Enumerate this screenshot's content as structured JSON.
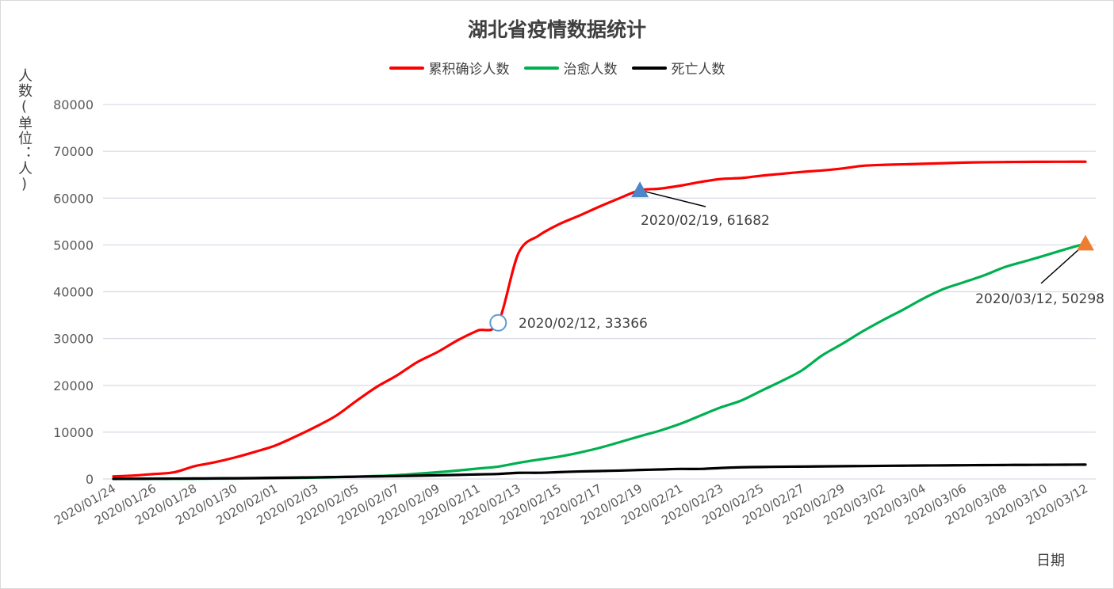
{
  "chart_data": {
    "type": "line",
    "title": "湖北省疫情数据统计",
    "xlabel": "日期",
    "ylabel": "人数(单位：人)",
    "ylim": [
      0,
      80000
    ],
    "yticks": [
      "0",
      "10000",
      "20000",
      "30000",
      "40000",
      "50000",
      "60000",
      "70000",
      "80000"
    ],
    "grid": true,
    "legend_position": "top",
    "categories": [
      "2020/01/24",
      "2020/01/25",
      "2020/01/26",
      "2020/01/27",
      "2020/01/28",
      "2020/01/29",
      "2020/01/30",
      "2020/01/31",
      "2020/02/01",
      "2020/02/02",
      "2020/02/03",
      "2020/02/04",
      "2020/02/05",
      "2020/02/06",
      "2020/02/07",
      "2020/02/08",
      "2020/02/09",
      "2020/02/10",
      "2020/02/11",
      "2020/02/12",
      "2020/02/13",
      "2020/02/14",
      "2020/02/15",
      "2020/02/16",
      "2020/02/17",
      "2020/02/18",
      "2020/02/19",
      "2020/02/20",
      "2020/02/21",
      "2020/02/22",
      "2020/02/23",
      "2020/02/24",
      "2020/02/25",
      "2020/02/26",
      "2020/02/27",
      "2020/02/28",
      "2020/02/29",
      "2020/03/01",
      "2020/03/02",
      "2020/03/03",
      "2020/03/04",
      "2020/03/05",
      "2020/03/06",
      "2020/03/07",
      "2020/03/08",
      "2020/03/09",
      "2020/03/10",
      "2020/03/11",
      "2020/03/12"
    ],
    "tick_labels": [
      "2020/01/24",
      "2020/01/26",
      "2020/01/28",
      "2020/01/30",
      "2020/02/01",
      "2020/02/03",
      "2020/02/05",
      "2020/02/07",
      "2020/02/09",
      "2020/02/11",
      "2020/02/13",
      "2020/02/15",
      "2020/02/17",
      "2020/02/19",
      "2020/02/21",
      "2020/02/23",
      "2020/02/25",
      "2020/02/27",
      "2020/02/29",
      "2020/03/02",
      "2020/03/04",
      "2020/03/06",
      "2020/03/08",
      "2020/03/10",
      "2020/03/12"
    ],
    "series": [
      {
        "name": "累积确诊人数",
        "color": "#ff0000",
        "values": [
          549,
          729,
          1052,
          1423,
          2714,
          3554,
          4586,
          5806,
          7153,
          9074,
          11177,
          13522,
          16678,
          19665,
          22112,
          24953,
          27100,
          29631,
          31728,
          33366,
          48206,
          51986,
          54406,
          56249,
          58182,
          59989,
          61682,
          62031,
          62662,
          63454,
          64084,
          64287,
          64786,
          65187,
          65596,
          65914,
          66337,
          66907,
          67103,
          67217,
          67332,
          67466,
          67592,
          67666,
          67707,
          67743,
          67760,
          67773,
          67781
        ]
      },
      {
        "name": "治愈人数",
        "color": "#00b050",
        "values": [
          31,
          32,
          42,
          44,
          47,
          80,
          90,
          116,
          166,
          215,
          295,
          396,
          520,
          633,
          817,
          1115,
          1439,
          1795,
          2222,
          2639,
          3441,
          4131,
          4774,
          5623,
          6639,
          7862,
          9128,
          10337,
          11788,
          13557,
          15299,
          16738,
          18854,
          20912,
          23200,
          26403,
          28895,
          31536,
          33934,
          36167,
          38556,
          40592,
          42033,
          43500,
          45235,
          46488,
          47743,
          49056,
          50298
        ]
      },
      {
        "name": "死亡人数",
        "color": "#000000",
        "values": [
          24,
          39,
          52,
          76,
          100,
          125,
          162,
          204,
          249,
          294,
          350,
          414,
          479,
          549,
          618,
          699,
          780,
          871,
          974,
          1068,
          1310,
          1318,
          1457,
          1596,
          1696,
          1789,
          1921,
          2029,
          2144,
          2144,
          2346,
          2495,
          2563,
          2615,
          2641,
          2682,
          2727,
          2761,
          2803,
          2835,
          2871,
          2902,
          2931,
          2959,
          2986,
          3008,
          3024,
          3046,
          3062
        ]
      }
    ],
    "annotations": [
      {
        "label": "2020/02/12, 33366",
        "series": 0,
        "index": 19,
        "marker": "circle",
        "color": "#5b9bd5"
      },
      {
        "label": "2020/02/19, 61682",
        "series": 0,
        "index": 26,
        "marker": "triangle",
        "color": "#4a86c8"
      },
      {
        "label": "2020/03/12, 50298",
        "series": 1,
        "index": 48,
        "marker": "triangle",
        "color": "#ed7d31"
      }
    ]
  }
}
